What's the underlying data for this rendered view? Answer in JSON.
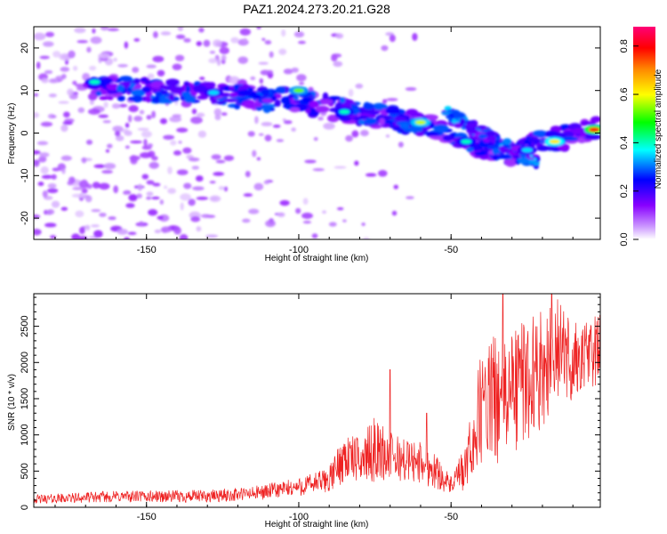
{
  "title": "PAZ1.2024.273.20.21.G28",
  "colors": {
    "snr_line": "#ee2222",
    "frame": "#000000",
    "colormap": [
      "#ffffff",
      "#8800ff",
      "#0000ff",
      "#00ffff",
      "#00ff00",
      "#ffff00",
      "#ff8800",
      "#ff0000",
      "#ff00aa"
    ]
  },
  "chart_data": [
    {
      "type": "heatmap",
      "title": "PAZ1.2024.273.20.21.G28",
      "xlabel": "Height of straight line (km)",
      "ylabel": "Frequency (Hz)",
      "xlim": [
        -187,
        -1
      ],
      "ylim": [
        -25,
        25
      ],
      "x_ticks": [
        -150,
        -100,
        -50
      ],
      "y_ticks": [
        20,
        10,
        0,
        -10,
        -20
      ],
      "colorbar": {
        "label": "Normalized spectral amplitude",
        "range": [
          0.0,
          0.88
        ],
        "ticks": [
          0.0,
          0.2,
          0.4,
          0.6,
          0.8
        ]
      },
      "ridge": {
        "x": [
          -170,
          -150,
          -130,
          -110,
          -100,
          -90,
          -80,
          -70,
          -60,
          -50,
          -40,
          -30,
          -20,
          -10,
          -2
        ],
        "freq": [
          11,
          10,
          9,
          8,
          7.5,
          6,
          4.5,
          3.5,
          2,
          0,
          -3,
          -5,
          -2,
          -1,
          1
        ]
      },
      "hotspots": [
        {
          "x": -167,
          "freq": 12,
          "amp": 0.45
        },
        {
          "x": -128,
          "freq": 9.5,
          "amp": 0.4
        },
        {
          "x": -100,
          "freq": 10,
          "amp": 0.6
        },
        {
          "x": -85,
          "freq": 5,
          "amp": 0.45
        },
        {
          "x": -60,
          "freq": 2.5,
          "amp": 0.65
        },
        {
          "x": -45,
          "freq": -2,
          "amp": 0.45
        },
        {
          "x": -25,
          "freq": -4,
          "amp": 0.4
        },
        {
          "x": -16,
          "freq": -2,
          "amp": 0.7
        },
        {
          "x": -3,
          "freq": 0.8,
          "amp": 0.88
        }
      ]
    },
    {
      "type": "line",
      "xlabel": "Height of straight line (km)",
      "ylabel": "SNR (10 * v/v)",
      "xlim": [
        -187,
        -1
      ],
      "ylim": [
        0,
        2950
      ],
      "x_ticks": [
        -150,
        -100,
        -50
      ],
      "y_ticks": [
        0,
        500,
        1000,
        1500,
        2000,
        2500
      ],
      "envelope": {
        "x": [
          -187,
          -160,
          -130,
          -115,
          -100,
          -90,
          -85,
          -80,
          -75,
          -70,
          -65,
          -60,
          -55,
          -50,
          -45,
          -40,
          -35,
          -30,
          -25,
          -20,
          -15,
          -10,
          -5,
          -1
        ],
        "mean": [
          110,
          150,
          150,
          190,
          280,
          380,
          700,
          650,
          800,
          700,
          650,
          620,
          500,
          300,
          550,
          1400,
          1500,
          1600,
          1800,
          1900,
          2200,
          2000,
          2100,
          2200
        ],
        "amp": [
          60,
          80,
          90,
          100,
          130,
          180,
          350,
          300,
          450,
          350,
          300,
          300,
          250,
          120,
          350,
          800,
          900,
          900,
          900,
          800,
          700,
          600,
          500,
          500
        ]
      },
      "peaks": [
        {
          "x": -70,
          "y": 1900
        },
        {
          "x": -58,
          "y": 1300
        },
        {
          "x": -33,
          "y": 2950
        },
        {
          "x": -17,
          "y": 2950
        }
      ]
    }
  ]
}
